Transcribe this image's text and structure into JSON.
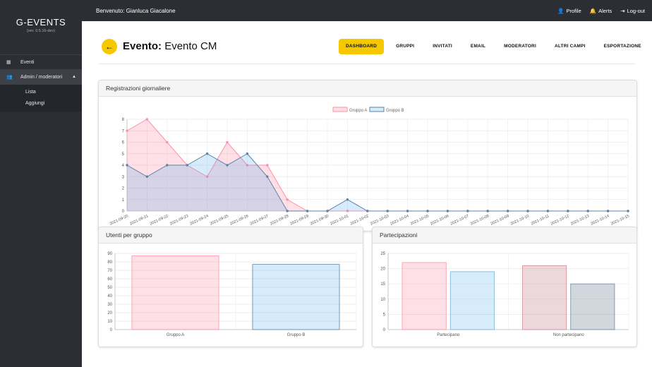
{
  "app": {
    "brand": "G-EVENTS",
    "version": "(ver. 0.5.16-dev)"
  },
  "sidebar": {
    "items": [
      {
        "label": "Eventi",
        "icon": "calendar-icon"
      },
      {
        "label": "Admin / moderatori",
        "icon": "users-icon"
      }
    ],
    "sub_items": [
      {
        "label": "Lista"
      },
      {
        "label": "Aggiungi"
      }
    ]
  },
  "topbar": {
    "welcome": "Benvenuto: Gianluca Giacalone",
    "profile": "Profile",
    "alerts": "Alerts",
    "logout": "Log-out"
  },
  "page": {
    "title_bold": "Evento:",
    "title_rest": "Evento CM",
    "tabs": [
      "DASHBOARD",
      "GRUPPI",
      "INVITATI",
      "EMAIL",
      "MODERATORI",
      "ALTRI CAMPI",
      "ESPORTAZIONE"
    ]
  },
  "colors": {
    "accent": "#f5c800",
    "sidebar": "#2b2e33",
    "pink_fill": "rgba(255,99,132,0.2)",
    "pink_line": "#ff8fa6",
    "blue_fill": "rgba(54,162,235,0.2)",
    "blue_line": "#5a84a8"
  },
  "cards": {
    "registrations": "Registrazioni giornaliere",
    "users": "Utenti per gruppo",
    "participations": "Partecipazioni"
  },
  "chart_data": [
    {
      "type": "area",
      "title": "Registrazioni giornaliere",
      "categories": [
        "2021-09-20",
        "2021-09-21",
        "2021-09-22",
        "2021-09-23",
        "2021-09-24",
        "2021-09-25",
        "2021-09-26",
        "2021-09-27",
        "2021-09-28",
        "2021-09-29",
        "2021-09-30",
        "2021-10-01",
        "2021-10-02",
        "2021-10-03",
        "2021-10-04",
        "2021-10-05",
        "2021-10-06",
        "2021-10-07",
        "2021-10-08",
        "2021-10-09",
        "2021-10-10",
        "2021-10-11",
        "2021-10-12",
        "2021-10-13",
        "2021-10-14",
        "2021-10-15"
      ],
      "series": [
        {
          "name": "Gruppo A",
          "values": [
            7,
            8,
            6,
            4,
            3,
            6,
            4,
            4,
            1,
            0,
            0,
            0,
            0,
            0,
            0,
            0,
            0,
            0,
            0,
            0,
            0,
            0,
            0,
            0,
            0,
            0
          ]
        },
        {
          "name": "Gruppo B",
          "values": [
            4,
            3,
            4,
            4,
            5,
            4,
            5,
            3,
            0,
            0,
            0,
            1,
            0,
            0,
            0,
            0,
            0,
            0,
            0,
            0,
            0,
            0,
            0,
            0,
            0,
            0
          ]
        }
      ],
      "yticks": [
        "0",
        "1",
        "2",
        "3",
        "4",
        "5",
        "6",
        "7",
        "8"
      ],
      "ylim": [
        0,
        8
      ],
      "legend": "top",
      "grid": true
    },
    {
      "type": "bar",
      "title": "Utenti per gruppo",
      "categories": [
        "Gruppo A",
        "Gruppo B"
      ],
      "values": [
        87,
        77
      ],
      "yticks": [
        "0",
        "10",
        "20",
        "30",
        "40",
        "50",
        "60",
        "70",
        "80",
        "90"
      ],
      "ylim": [
        0,
        90
      ],
      "grid": true
    },
    {
      "type": "bar",
      "title": "Partecipazioni",
      "categories": [
        "Partecipano",
        "Non partecipano"
      ],
      "series": [
        {
          "values": [
            22,
            21
          ]
        },
        {
          "values": [
            19,
            15
          ]
        }
      ],
      "yticks": [
        "0",
        "5",
        "10",
        "15",
        "20",
        "25"
      ],
      "ylim": [
        0,
        25
      ],
      "grid": true
    }
  ]
}
